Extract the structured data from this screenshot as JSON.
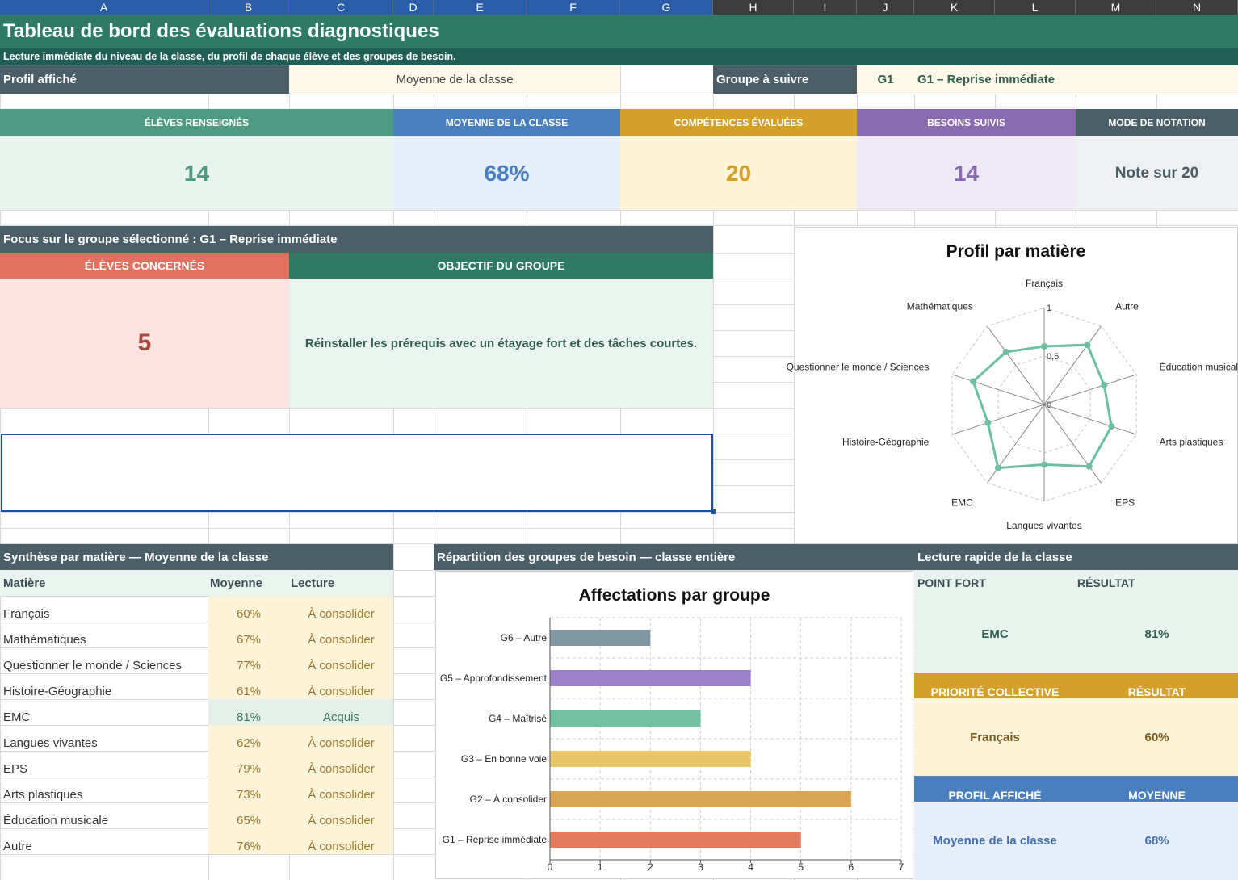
{
  "column_headers": [
    "A",
    "B",
    "C",
    "D",
    "E",
    "F",
    "G",
    "H",
    "I",
    "J",
    "K",
    "L",
    "M",
    "N"
  ],
  "header": {
    "title": "Tableau de bord des évaluations diagnostiques",
    "subtitle": "Lecture immédiate du niveau de la classe, du profil de chaque élève et des groupes de besoin."
  },
  "selectors": {
    "profile_label": "Profil affiché",
    "profile_value": "Moyenne de la classe",
    "group_label": "Groupe à suivre",
    "group_code": "G1",
    "group_name": "G1 – Reprise immédiate"
  },
  "kpis": [
    {
      "label": "ÉLÈVES RENSEIGNÉS",
      "value": "14"
    },
    {
      "label": "MOYENNE DE LA CLASSE",
      "value": "68%"
    },
    {
      "label": "COMPÉTENCES ÉVALUÉES",
      "value": "20"
    },
    {
      "label": "BESOINS SUIVIS",
      "value": "14"
    },
    {
      "label": "MODE DE NOTATION",
      "value": "Note sur 20"
    }
  ],
  "focus": {
    "title": "Focus sur le groupe sélectionné : G1 – Reprise immédiate",
    "students_label": "ÉLÈVES CONCERNÉS",
    "students_value": "5",
    "objective_label": "OBJECTIF DU GROUPE",
    "objective": "Réinstaller les prérequis avec un étayage fort et des tâches courtes."
  },
  "subjects": {
    "title": "Synthèse par matière — Moyenne de la classe",
    "columns": [
      "Matière",
      "Moyenne",
      "Lecture"
    ],
    "rows": [
      [
        "Français",
        "60%",
        "À consolider"
      ],
      [
        "Mathématiques",
        "67%",
        "À consolider"
      ],
      [
        "Questionner le monde / Sciences",
        "77%",
        "À consolider"
      ],
      [
        "Histoire-Géographie",
        "61%",
        "À consolider"
      ],
      [
        "EMC",
        "81%",
        "Acquis"
      ],
      [
        "Langues vivantes",
        "62%",
        "À consolider"
      ],
      [
        "EPS",
        "79%",
        "À consolider"
      ],
      [
        "Arts plastiques",
        "73%",
        "À consolider"
      ],
      [
        "Éducation musicale",
        "65%",
        "À consolider"
      ],
      [
        "Autre",
        "76%",
        "À consolider"
      ]
    ]
  },
  "groups_title": "Répartition des groupes de besoin — classe entière",
  "quick": {
    "title": "Lecture rapide de la classe",
    "blocks": [
      {
        "label": "POINT FORT",
        "result_label": "RÉSULTAT",
        "name": "EMC",
        "value": "81%"
      },
      {
        "label": "PRIORITÉ COLLECTIVE",
        "result_label": "RÉSULTAT",
        "name": "Français",
        "value": "60%"
      },
      {
        "label": "PROFIL AFFICHÉ",
        "result_label": "MOYENNE",
        "name": "Moyenne de la classe",
        "value": "68%"
      }
    ]
  },
  "chart_data": [
    {
      "type": "radar",
      "title": "Profil par matière",
      "categories": [
        "Français",
        "Autre",
        "Éducation musicale",
        "Arts plastiques",
        "EPS",
        "Langues vivantes",
        "EMC",
        "Histoire-Géographie",
        "Questionner le monde / Sciences",
        "Mathématiques"
      ],
      "values": [
        0.6,
        0.76,
        0.65,
        0.73,
        0.79,
        0.62,
        0.81,
        0.61,
        0.77,
        0.67
      ],
      "color": "#6dbf9f",
      "rlim": [
        0,
        1
      ],
      "rticks": [
        0,
        {
          "value": 0.5,
          "label": "0,5"
        },
        1
      ],
      "grid": true
    },
    {
      "type": "bar",
      "orientation": "horizontal",
      "title": "Affectations par groupe",
      "categories": [
        "G1 – Reprise immédiate",
        "G2 – À consolider",
        "G3 – En bonne voie",
        "G4 – Maîtrisé",
        "G5 – Approfondissement",
        "G6 – Autre"
      ],
      "values": [
        5,
        6,
        4,
        3,
        4,
        2
      ],
      "colors": [
        "#e07b5f",
        "#d9a556",
        "#e8c76a",
        "#72bfa2",
        "#9b7fc9",
        "#7f97a3"
      ],
      "xlim": [
        0,
        7
      ],
      "xticks": [
        0,
        1,
        2,
        3,
        4,
        5,
        6,
        7
      ],
      "grid": true
    }
  ]
}
